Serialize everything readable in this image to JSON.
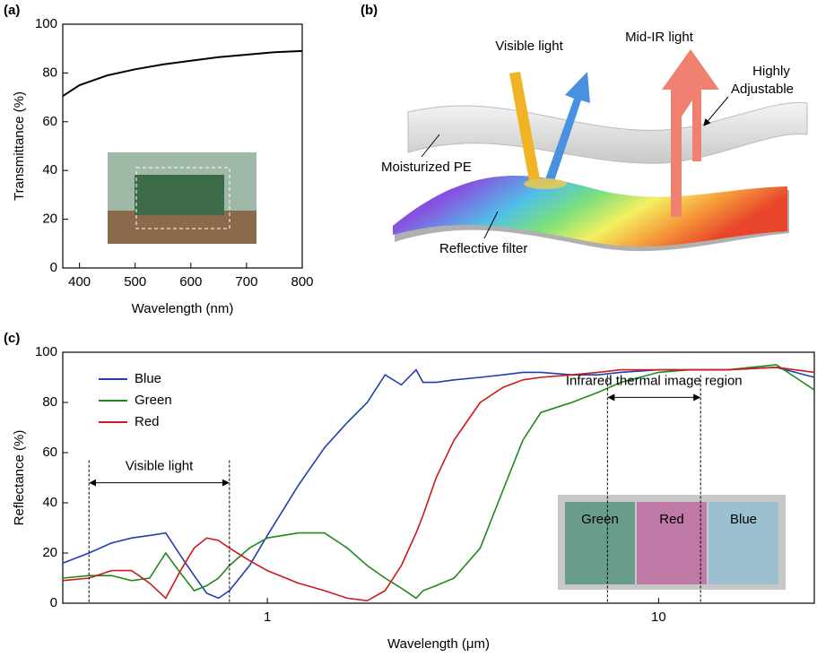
{
  "chart_data": [
    {
      "type": "line",
      "label": "(a)",
      "xlabel": "Wavelength (nm)",
      "ylabel": "Transmittance (%)",
      "x": [
        370,
        400,
        450,
        500,
        550,
        600,
        650,
        700,
        750,
        800
      ],
      "values": [
        70.5,
        75,
        79,
        81.5,
        83.5,
        85,
        86.5,
        87.5,
        88.5,
        89
      ],
      "color": "#000000",
      "xlim": [
        370,
        800
      ],
      "xticks": [
        400,
        500,
        600,
        700,
        800
      ],
      "ylim": [
        0,
        100
      ],
      "yticks": [
        0,
        20,
        40,
        60,
        80,
        100
      ]
    },
    {
      "type": "line",
      "label": "(c)",
      "xlabel": "Wavelength (μm)",
      "ylabel": "Reflectance (%)",
      "xscale": "log",
      "x": [
        0.3,
        0.35,
        0.4,
        0.45,
        0.5,
        0.55,
        0.6,
        0.65,
        0.7,
        0.75,
        0.8,
        0.9,
        1,
        1.2,
        1.4,
        1.6,
        1.8,
        2,
        2.2,
        2.4,
        2.5,
        2.7,
        3,
        3.5,
        4,
        4.5,
        5,
        6,
        7,
        8,
        10,
        12,
        15,
        20,
        25
      ],
      "series": [
        {
          "name": "Blue",
          "color": "#1f3fb0",
          "values": [
            16,
            20,
            24,
            26,
            27,
            28,
            19,
            11,
            4,
            2,
            5,
            15,
            27,
            47,
            62,
            72,
            80,
            91,
            87,
            93,
            88,
            88,
            89,
            90,
            91,
            92,
            92,
            91,
            91,
            92,
            93,
            93,
            93,
            94,
            90
          ]
        },
        {
          "name": "Green",
          "color": "#1e8a1e",
          "values": [
            10,
            11,
            11,
            9,
            10,
            20,
            12,
            5,
            7,
            10,
            15,
            22,
            26,
            28,
            28,
            22,
            15,
            10,
            6,
            2,
            5,
            7,
            10,
            22,
            45,
            65,
            76,
            80,
            84,
            88,
            92,
            93,
            93,
            95,
            85
          ]
        },
        {
          "name": "Red",
          "color": "#cc1a1a",
          "values": [
            9,
            10,
            13,
            13,
            8,
            2,
            13,
            22,
            26,
            25,
            22,
            17,
            13,
            8,
            5,
            2,
            1,
            5,
            15,
            28,
            35,
            50,
            65,
            80,
            86,
            89,
            90,
            91,
            92,
            93,
            93,
            93,
            93,
            94,
            92
          ]
        }
      ],
      "legend": "upper left",
      "annotations": [
        {
          "text": "Visible light",
          "x": [
            0.35,
            0.8
          ],
          "y": 48
        },
        {
          "text": "Infrared thermal image region",
          "x": [
            7.4,
            12.8
          ],
          "y": 82
        }
      ],
      "inset": [
        "Green",
        "Red",
        "Blue"
      ],
      "xlim": [
        0.3,
        25
      ],
      "xticks": [
        1,
        10
      ],
      "ylim": [
        0,
        100
      ],
      "yticks": [
        0,
        20,
        40,
        60,
        80,
        100
      ]
    }
  ],
  "diagram": {
    "label": "(b)",
    "visible": "Visible light",
    "midir": "Mid-IR light",
    "adjustable": [
      "Highly",
      "Adjustable"
    ],
    "pe": "Moisturized PE",
    "filter": "Reflective filter"
  }
}
